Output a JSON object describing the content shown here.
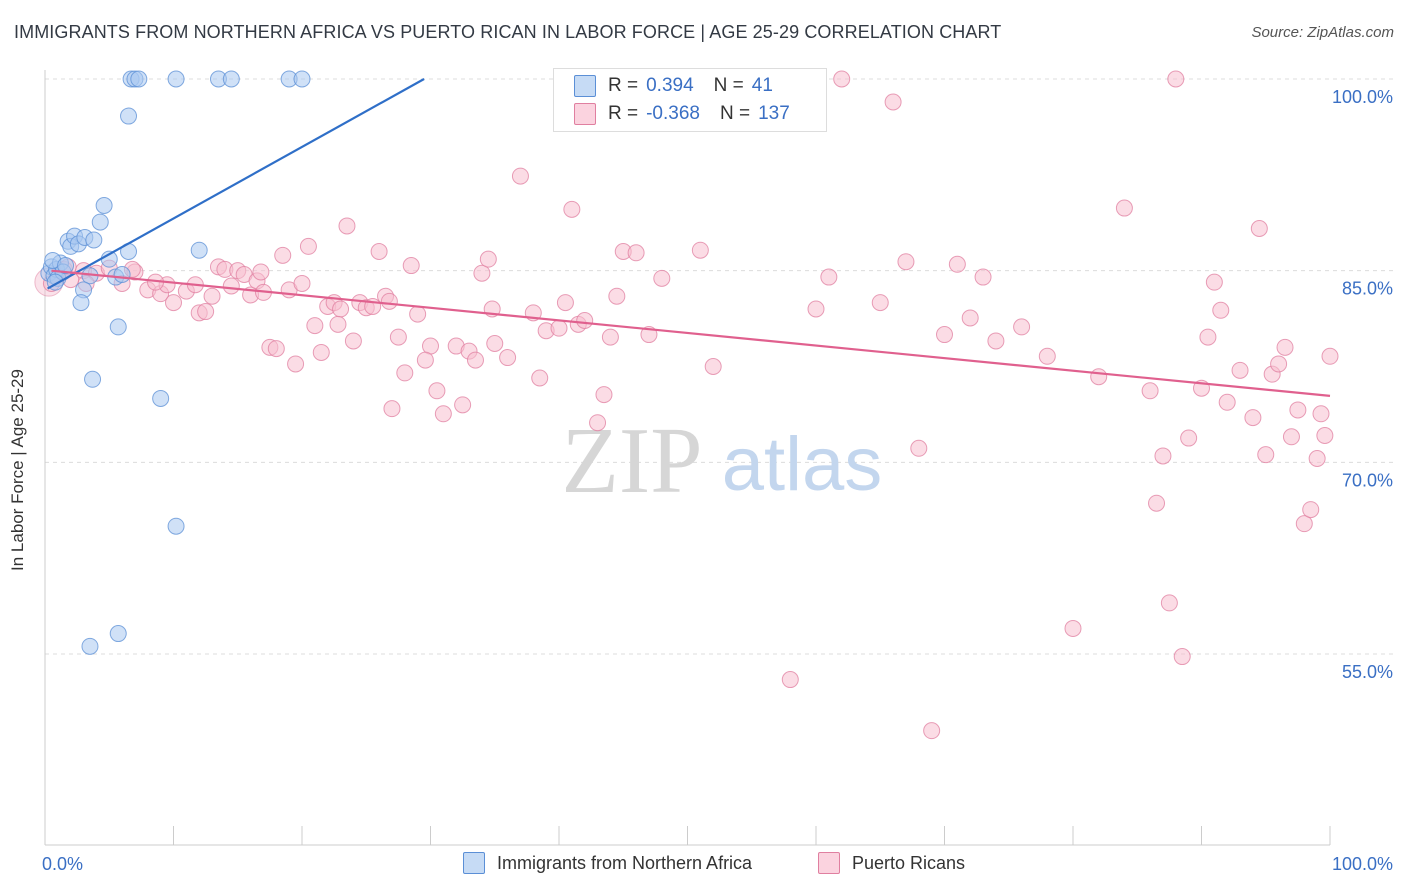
{
  "title": "IMMIGRANTS FROM NORTHERN AFRICA VS PUERTO RICAN IN LABOR FORCE | AGE 25-29 CORRELATION CHART",
  "source": "Source: ZipAtlas.com",
  "watermark": {
    "zip": "ZIP",
    "atlas": "atlas"
  },
  "legend": {
    "rows": [
      {
        "r_label": "R =",
        "r_value": "0.394",
        "n_label": "N =",
        "n_value": "41",
        "color": "#a9c8f0",
        "edge": "#5b8fd6"
      },
      {
        "r_label": "R =",
        "r_value": "-0.368",
        "n_label": "N =",
        "n_value": "137",
        "color": "#f7bfd0",
        "edge": "#e07fa0"
      }
    ]
  },
  "chart_data": {
    "type": "scatter",
    "title": "IMMIGRANTS FROM NORTHERN AFRICA VS PUERTO RICAN IN LABOR FORCE | AGE 25-29 CORRELATION CHART",
    "xlabel": "",
    "ylabel": "In Labor Force | Age 25-29",
    "xlim": [
      0,
      100
    ],
    "ylim": [
      40,
      100
    ],
    "x_tick_labels": [
      "0.0%",
      "100.0%"
    ],
    "y_ticks": [
      55,
      70,
      85,
      100
    ],
    "y_tick_labels": [
      "55.0%",
      "70.0%",
      "85.0%",
      "100.0%"
    ],
    "grid": true,
    "legend_position": "top-center",
    "series": [
      {
        "name": "Immigrants from Northern Africa",
        "color": "#a9c8f0",
        "edge": "#5b8fd6",
        "line_color": "#2f6fc8",
        "trend": {
          "x": [
            0.2,
            29.5
          ],
          "y": [
            83.6,
            100
          ]
        },
        "points": [
          [
            0.3,
            84.8
          ],
          [
            0.5,
            85.3
          ],
          [
            0.7,
            84.6
          ],
          [
            0.9,
            85.1
          ],
          [
            1.0,
            84.4
          ],
          [
            1.2,
            85.6
          ],
          [
            1.4,
            84.9
          ],
          [
            0.6,
            85.8
          ],
          [
            0.8,
            84.1
          ],
          [
            1.6,
            85.4
          ],
          [
            1.8,
            87.3
          ],
          [
            2.0,
            86.9
          ],
          [
            2.3,
            87.7
          ],
          [
            2.6,
            87.1
          ],
          [
            3.1,
            87.6
          ],
          [
            3.8,
            87.4
          ],
          [
            4.3,
            88.8
          ],
          [
            4.6,
            90.1
          ],
          [
            3.5,
            84.6
          ],
          [
            3.0,
            83.5
          ],
          [
            2.8,
            82.5
          ],
          [
            5.0,
            85.9
          ],
          [
            5.5,
            84.5
          ],
          [
            6.0,
            84.7
          ],
          [
            6.5,
            86.5
          ],
          [
            5.7,
            80.6
          ],
          [
            3.7,
            76.5
          ],
          [
            9.0,
            75.0
          ],
          [
            10.2,
            65.0
          ],
          [
            5.7,
            56.6
          ],
          [
            3.5,
            55.6
          ],
          [
            6.5,
            97.1
          ],
          [
            6.7,
            100
          ],
          [
            7.0,
            100
          ],
          [
            7.3,
            100
          ],
          [
            10.2,
            100
          ],
          [
            13.5,
            100
          ],
          [
            14.5,
            100
          ],
          [
            19.0,
            100
          ],
          [
            20.0,
            100
          ],
          [
            12.0,
            86.6
          ]
        ]
      },
      {
        "name": "Puerto Ricans",
        "color": "#f7bfd0",
        "edge": "#e07fa0",
        "line_color": "#e0608e",
        "trend": {
          "x": [
            0.5,
            100
          ],
          "y": [
            85.0,
            75.2
          ]
        },
        "points": [
          [
            0.5,
            84.0
          ],
          [
            1.0,
            84.6
          ],
          [
            1.5,
            85.1
          ],
          [
            2.0,
            84.3
          ],
          [
            3.0,
            85.0
          ],
          [
            4.0,
            84.8
          ],
          [
            5.0,
            85.2
          ],
          [
            6.0,
            84.0
          ],
          [
            7.0,
            84.9
          ],
          [
            8.0,
            83.5
          ],
          [
            9.0,
            83.2
          ],
          [
            9.5,
            83.9
          ],
          [
            10.0,
            82.5
          ],
          [
            11.0,
            83.4
          ],
          [
            12.0,
            81.7
          ],
          [
            12.5,
            81.8
          ],
          [
            13.0,
            83.0
          ],
          [
            13.5,
            85.3
          ],
          [
            14.0,
            85.1
          ],
          [
            14.5,
            83.8
          ],
          [
            15.0,
            85.0
          ],
          [
            15.5,
            84.7
          ],
          [
            16.0,
            83.1
          ],
          [
            16.5,
            84.2
          ],
          [
            17.0,
            83.3
          ],
          [
            17.5,
            79.0
          ],
          [
            18.0,
            78.9
          ],
          [
            18.5,
            86.2
          ],
          [
            19.0,
            83.5
          ],
          [
            19.5,
            77.7
          ],
          [
            20.0,
            84.0
          ],
          [
            20.5,
            86.9
          ],
          [
            21.0,
            80.7
          ],
          [
            21.5,
            78.6
          ],
          [
            22.0,
            82.2
          ],
          [
            22.5,
            82.5
          ],
          [
            23.0,
            82.0
          ],
          [
            23.5,
            88.5
          ],
          [
            24.0,
            79.5
          ],
          [
            24.5,
            82.5
          ],
          [
            25.0,
            82.1
          ],
          [
            25.5,
            82.2
          ],
          [
            26.0,
            86.5
          ],
          [
            26.5,
            83.0
          ],
          [
            27.0,
            74.2
          ],
          [
            27.5,
            79.8
          ],
          [
            28.0,
            77.0
          ],
          [
            28.5,
            85.4
          ],
          [
            29.0,
            81.6
          ],
          [
            30.0,
            79.1
          ],
          [
            30.5,
            75.6
          ],
          [
            31.0,
            73.8
          ],
          [
            32.0,
            79.1
          ],
          [
            32.5,
            74.5
          ],
          [
            33.0,
            78.7
          ],
          [
            33.5,
            78.0
          ],
          [
            34.0,
            84.8
          ],
          [
            34.5,
            85.9
          ],
          [
            35.0,
            79.3
          ],
          [
            36.0,
            78.2
          ],
          [
            37.0,
            92.4
          ],
          [
            38.0,
            81.7
          ],
          [
            38.5,
            76.6
          ],
          [
            39.0,
            80.3
          ],
          [
            40.0,
            80.5
          ],
          [
            40.5,
            82.5
          ],
          [
            41.0,
            89.8
          ],
          [
            41.5,
            80.8
          ],
          [
            42.0,
            81.1
          ],
          [
            43.0,
            73.1
          ],
          [
            43.5,
            75.3
          ],
          [
            44.0,
            79.8
          ],
          [
            45.0,
            86.5
          ],
          [
            46.0,
            86.4
          ],
          [
            47.0,
            80.0
          ],
          [
            48.0,
            84.4
          ],
          [
            50.0,
            100
          ],
          [
            51.0,
            86.6
          ],
          [
            56.0,
            100
          ],
          [
            58.0,
            53.0
          ],
          [
            61.0,
            84.5
          ],
          [
            62.0,
            100
          ],
          [
            65.0,
            82.5
          ],
          [
            66.0,
            98.2
          ],
          [
            67.0,
            85.7
          ],
          [
            68.0,
            71.1
          ],
          [
            69.0,
            49.0
          ],
          [
            71.0,
            85.5
          ],
          [
            72.0,
            81.3
          ],
          [
            73.0,
            84.5
          ],
          [
            74.0,
            79.5
          ],
          [
            76.0,
            80.6
          ],
          [
            78.0,
            78.3
          ],
          [
            80.0,
            57.0
          ],
          [
            82.0,
            76.7
          ],
          [
            84.0,
            89.9
          ],
          [
            86.0,
            75.6
          ],
          [
            86.5,
            66.8
          ],
          [
            87.0,
            70.5
          ],
          [
            87.5,
            59.0
          ],
          [
            88.0,
            100
          ],
          [
            88.5,
            54.8
          ],
          [
            89.0,
            71.9
          ],
          [
            90.0,
            75.8
          ],
          [
            90.5,
            79.8
          ],
          [
            91.0,
            84.1
          ],
          [
            91.5,
            81.9
          ],
          [
            92.0,
            74.7
          ],
          [
            93.0,
            77.2
          ],
          [
            94.0,
            73.5
          ],
          [
            94.5,
            88.3
          ],
          [
            95.0,
            70.6
          ],
          [
            95.5,
            76.9
          ],
          [
            96.0,
            77.7
          ],
          [
            96.5,
            79.0
          ],
          [
            97.0,
            72.0
          ],
          [
            97.5,
            74.1
          ],
          [
            98.0,
            65.2
          ],
          [
            98.5,
            66.3
          ],
          [
            99.0,
            70.3
          ],
          [
            99.3,
            73.8
          ],
          [
            99.6,
            72.1
          ],
          [
            100,
            78.3
          ],
          [
            1.8,
            85.3
          ],
          [
            3.2,
            84.0
          ],
          [
            6.8,
            85.1
          ],
          [
            8.6,
            84.1
          ],
          [
            11.7,
            83.9
          ],
          [
            16.8,
            84.9
          ],
          [
            22.8,
            80.8
          ],
          [
            26.8,
            82.6
          ],
          [
            29.6,
            78.0
          ],
          [
            34.8,
            82.0
          ],
          [
            44.5,
            83.0
          ],
          [
            52.0,
            77.5
          ],
          [
            60.0,
            82.0
          ],
          [
            70.0,
            80.0
          ]
        ]
      }
    ]
  },
  "axis_labels": {
    "y": "In Labor Force | Age 25-29",
    "x_min": "0.0%",
    "x_max": "100.0%"
  },
  "bottom_legend": [
    {
      "label": "Immigrants from Northern Africa",
      "color": "#a9c8f0",
      "edge": "#5b8fd6"
    },
    {
      "label": "Puerto Ricans",
      "color": "#f7bfd0",
      "edge": "#e07fa0"
    }
  ]
}
